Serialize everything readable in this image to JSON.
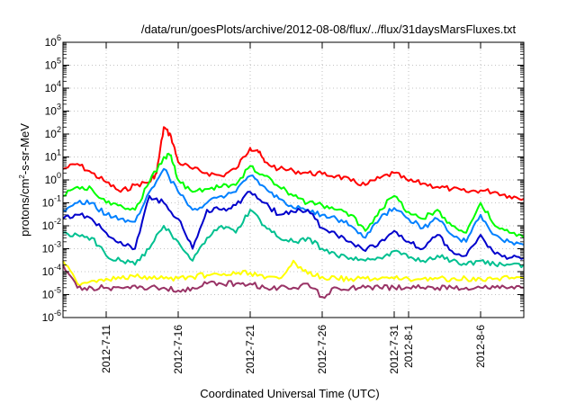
{
  "chart_data": {
    "type": "line",
    "title": "/data/run/goesPlots/archive/2012-08-08/flux/../flux/31daysMarsFluxes.txt",
    "xlabel": "Coordinated Universal Time (UTC)",
    "ylabel": "protons/cm²-s-sr-MeV",
    "ylabel_parts": {
      "pre": "protons/cm",
      "sup": "2",
      "post": "-s-sr-MeV"
    },
    "y_scale": "log",
    "ylim": [
      1e-06,
      1000000.0
    ],
    "xlim": [
      "2012-07-08",
      "2012-08-09"
    ],
    "grid": true,
    "x_ticks": [
      {
        "date": "2012-07-11",
        "label": "2012-7-11"
      },
      {
        "date": "2012-07-16",
        "label": "2012-7-16"
      },
      {
        "date": "2012-07-21",
        "label": "2012-7-21"
      },
      {
        "date": "2012-07-26",
        "label": "2012-7-26"
      },
      {
        "date": "2012-07-31",
        "label": "2012-7-31"
      },
      {
        "date": "2012-08-01",
        "label": "2012-8-1"
      },
      {
        "date": "2012-08-06",
        "label": "2012-8-6"
      }
    ],
    "y_ticks": [
      {
        "value": 1e-06,
        "base": "10",
        "exp": "-6"
      },
      {
        "value": 1e-05,
        "base": "10",
        "exp": "-5"
      },
      {
        "value": 0.0001,
        "base": "10",
        "exp": "-4"
      },
      {
        "value": 0.001,
        "base": "10",
        "exp": "-3"
      },
      {
        "value": 0.01,
        "base": "10",
        "exp": "-2"
      },
      {
        "value": 0.1,
        "base": "10",
        "exp": "-1"
      },
      {
        "value": 1,
        "base": "10",
        "exp": "0"
      },
      {
        "value": 10.0,
        "base": "10",
        "exp": "1"
      },
      {
        "value": 100.0,
        "base": "10",
        "exp": "2"
      },
      {
        "value": 1000.0,
        "base": "10",
        "exp": "3"
      },
      {
        "value": 10000.0,
        "base": "10",
        "exp": "4"
      },
      {
        "value": 100000.0,
        "base": "10",
        "exp": "5"
      },
      {
        "value": 1000000.0,
        "base": "10",
        "exp": "6"
      }
    ],
    "series": [
      {
        "color": "#ff0000",
        "x": [
          "2012-07-08",
          "2012-07-09",
          "2012-07-10",
          "2012-07-11",
          "2012-07-12",
          "2012-07-13",
          "2012-07-14",
          "2012-07-14T12:00",
          "2012-07-15",
          "2012-07-15T12:00",
          "2012-07-16",
          "2012-07-17",
          "2012-07-18",
          "2012-07-19",
          "2012-07-20",
          "2012-07-21",
          "2012-07-21T12:00",
          "2012-07-22",
          "2012-07-23",
          "2012-07-24",
          "2012-07-25",
          "2012-07-26",
          "2012-07-27",
          "2012-07-28",
          "2012-07-29",
          "2012-07-30",
          "2012-07-31",
          "2012-08-01",
          "2012-08-02",
          "2012-08-03",
          "2012-08-04",
          "2012-08-05",
          "2012-08-06",
          "2012-08-07",
          "2012-08-08",
          "2012-08-09"
        ],
        "values": [
          3,
          5,
          2,
          0.8,
          0.3,
          0.6,
          0.8,
          2,
          200,
          80,
          6,
          3,
          2,
          1.5,
          3,
          25,
          20,
          6,
          3,
          2.5,
          2,
          1.8,
          1.5,
          0.9,
          0.6,
          1.2,
          2,
          0.9,
          0.7,
          0.5,
          0.4,
          0.3,
          0.35,
          0.3,
          0.2,
          0.15
        ]
      },
      {
        "color": "#00ff00",
        "x": [
          "2012-07-08",
          "2012-07-09",
          "2012-07-10",
          "2012-07-11",
          "2012-07-12",
          "2012-07-13",
          "2012-07-14",
          "2012-07-15",
          "2012-07-15T12:00",
          "2012-07-16",
          "2012-07-17",
          "2012-07-18",
          "2012-07-19",
          "2012-07-20",
          "2012-07-21",
          "2012-07-22",
          "2012-07-23",
          "2012-07-24",
          "2012-07-25",
          "2012-07-26",
          "2012-07-27",
          "2012-07-28",
          "2012-07-29",
          "2012-07-30",
          "2012-07-31",
          "2012-08-01",
          "2012-08-02",
          "2012-08-03",
          "2012-08-04",
          "2012-08-05",
          "2012-08-06",
          "2012-08-07",
          "2012-08-08",
          "2012-08-09"
        ],
        "values": [
          0.2,
          0.5,
          0.4,
          0.1,
          0.08,
          0.05,
          0.8,
          10,
          12,
          1,
          0.3,
          0.4,
          0.5,
          0.6,
          4,
          1.5,
          0.5,
          0.2,
          0.1,
          0.08,
          0.05,
          0.03,
          0.006,
          0.05,
          0.2,
          0.04,
          0.02,
          0.05,
          0.01,
          0.005,
          0.1,
          0.01,
          0.005,
          0.003
        ]
      },
      {
        "color": "#0080ff",
        "x": [
          "2012-07-08",
          "2012-07-09",
          "2012-07-10",
          "2012-07-11",
          "2012-07-12",
          "2012-07-13",
          "2012-07-14",
          "2012-07-15",
          "2012-07-16",
          "2012-07-17",
          "2012-07-18",
          "2012-07-19",
          "2012-07-20",
          "2012-07-21",
          "2012-07-22",
          "2012-07-23",
          "2012-07-24",
          "2012-07-25",
          "2012-07-26",
          "2012-07-27",
          "2012-07-28",
          "2012-07-29",
          "2012-07-30",
          "2012-07-31",
          "2012-08-01",
          "2012-08-02",
          "2012-08-03",
          "2012-08-04",
          "2012-08-05",
          "2012-08-06",
          "2012-08-07",
          "2012-08-08",
          "2012-08-09"
        ],
        "values": [
          0.05,
          0.1,
          0.1,
          0.03,
          0.02,
          0.015,
          0.3,
          3,
          0.3,
          0.05,
          0.1,
          0.2,
          0.3,
          1.5,
          0.5,
          0.15,
          0.06,
          0.05,
          0.03,
          0.02,
          0.01,
          0.003,
          0.02,
          0.06,
          0.02,
          0.008,
          0.02,
          0.004,
          0.002,
          0.03,
          0.004,
          0.002,
          0.0015
        ]
      },
      {
        "color": "#0000cc",
        "x": [
          "2012-07-08",
          "2012-07-09",
          "2012-07-10",
          "2012-07-11",
          "2012-07-12",
          "2012-07-13",
          "2012-07-14",
          "2012-07-15",
          "2012-07-16",
          "2012-07-17",
          "2012-07-18",
          "2012-07-19",
          "2012-07-20",
          "2012-07-21",
          "2012-07-22",
          "2012-07-23",
          "2012-07-24",
          "2012-07-25",
          "2012-07-26",
          "2012-07-27",
          "2012-07-28",
          "2012-07-29",
          "2012-07-30",
          "2012-07-31",
          "2012-08-01",
          "2012-08-02",
          "2012-08-03",
          "2012-08-04",
          "2012-08-05",
          "2012-08-06",
          "2012-08-07",
          "2012-08-08",
          "2012-08-09"
        ],
        "values": [
          0.02,
          0.03,
          0.02,
          0.005,
          0.002,
          0.001,
          0.2,
          0.1,
          0.02,
          0.001,
          0.05,
          0.05,
          0.08,
          0.3,
          0.1,
          0.03,
          0.04,
          0.05,
          0.008,
          0.004,
          0.002,
          0.0008,
          0.002,
          0.006,
          0.002,
          0.001,
          0.004,
          0.0008,
          0.0005,
          0.004,
          0.0006,
          0.0004,
          0.0004
        ]
      },
      {
        "color": "#00c090",
        "x": [
          "2012-07-08",
          "2012-07-09",
          "2012-07-10",
          "2012-07-11",
          "2012-07-12",
          "2012-07-13",
          "2012-07-14",
          "2012-07-15",
          "2012-07-16",
          "2012-07-17",
          "2012-07-18",
          "2012-07-19",
          "2012-07-20",
          "2012-07-21",
          "2012-07-22",
          "2012-07-23",
          "2012-07-24",
          "2012-07-25",
          "2012-07-26",
          "2012-07-27",
          "2012-07-28",
          "2012-07-29",
          "2012-07-30",
          "2012-07-31",
          "2012-08-01",
          "2012-08-02",
          "2012-08-03",
          "2012-08-04",
          "2012-08-05",
          "2012-08-06",
          "2012-08-07",
          "2012-08-08",
          "2012-08-09"
        ],
        "values": [
          0.005,
          0.004,
          0.003,
          0.0005,
          0.0003,
          0.0002,
          0.001,
          0.01,
          0.002,
          0.0003,
          0.003,
          0.01,
          0.005,
          0.05,
          0.01,
          0.003,
          0.002,
          0.003,
          0.001,
          0.0005,
          0.0004,
          0.0003,
          0.0004,
          0.0008,
          0.0004,
          0.0003,
          0.0005,
          0.0003,
          0.0002,
          0.0003,
          0.0002,
          0.0002,
          0.0002
        ]
      },
      {
        "color": "#ffff00",
        "x": [
          "2012-07-08",
          "2012-07-09",
          "2012-07-10",
          "2012-07-11",
          "2012-07-12",
          "2012-07-13",
          "2012-07-14",
          "2012-07-15",
          "2012-07-16",
          "2012-07-17",
          "2012-07-18",
          "2012-07-19",
          "2012-07-20",
          "2012-07-21",
          "2012-07-22",
          "2012-07-23",
          "2012-07-24",
          "2012-07-25",
          "2012-07-26",
          "2012-07-27",
          "2012-07-28",
          "2012-07-29",
          "2012-07-30",
          "2012-07-31",
          "2012-08-01",
          "2012-08-02",
          "2012-08-03",
          "2012-08-04",
          "2012-08-05",
          "2012-08-06",
          "2012-08-07",
          "2012-08-08",
          "2012-08-09"
        ],
        "values": [
          0.0003,
          3e-05,
          4e-05,
          5e-05,
          5e-05,
          6e-05,
          6e-05,
          5e-05,
          5e-05,
          6e-05,
          7e-05,
          7e-05,
          8e-05,
          9e-05,
          5e-05,
          5e-05,
          0.0003,
          8e-05,
          6e-05,
          5e-05,
          5e-05,
          5e-05,
          5e-05,
          5e-05,
          5e-05,
          5e-05,
          5e-05,
          5e-05,
          5e-05,
          5e-05,
          5e-05,
          5e-05,
          5e-05
        ]
      },
      {
        "color": "#993366",
        "x": [
          "2012-07-08",
          "2012-07-09",
          "2012-07-10",
          "2012-07-11",
          "2012-07-12",
          "2012-07-13",
          "2012-07-14",
          "2012-07-15",
          "2012-07-16",
          "2012-07-17",
          "2012-07-18",
          "2012-07-19",
          "2012-07-20",
          "2012-07-21",
          "2012-07-22",
          "2012-07-23",
          "2012-07-24",
          "2012-07-25",
          "2012-07-26",
          "2012-07-27",
          "2012-07-28",
          "2012-07-29",
          "2012-07-30",
          "2012-07-31",
          "2012-08-01",
          "2012-08-02",
          "2012-08-03",
          "2012-08-04",
          "2012-08-05",
          "2012-08-06",
          "2012-08-07",
          "2012-08-08",
          "2012-08-09"
        ],
        "values": [
          0.0002,
          2e-05,
          2e-05,
          2e-05,
          2e-05,
          2.5e-05,
          2e-05,
          2e-05,
          1.5e-05,
          2e-05,
          3e-05,
          3e-05,
          3e-05,
          3e-05,
          2e-05,
          2e-05,
          2e-05,
          3e-05,
          8e-06,
          2e-05,
          2e-05,
          2e-05,
          2e-05,
          2e-05,
          2e-05,
          2e-05,
          2e-05,
          2e-05,
          2e-05,
          2e-05,
          2e-05,
          2e-05,
          2e-05
        ]
      }
    ]
  }
}
